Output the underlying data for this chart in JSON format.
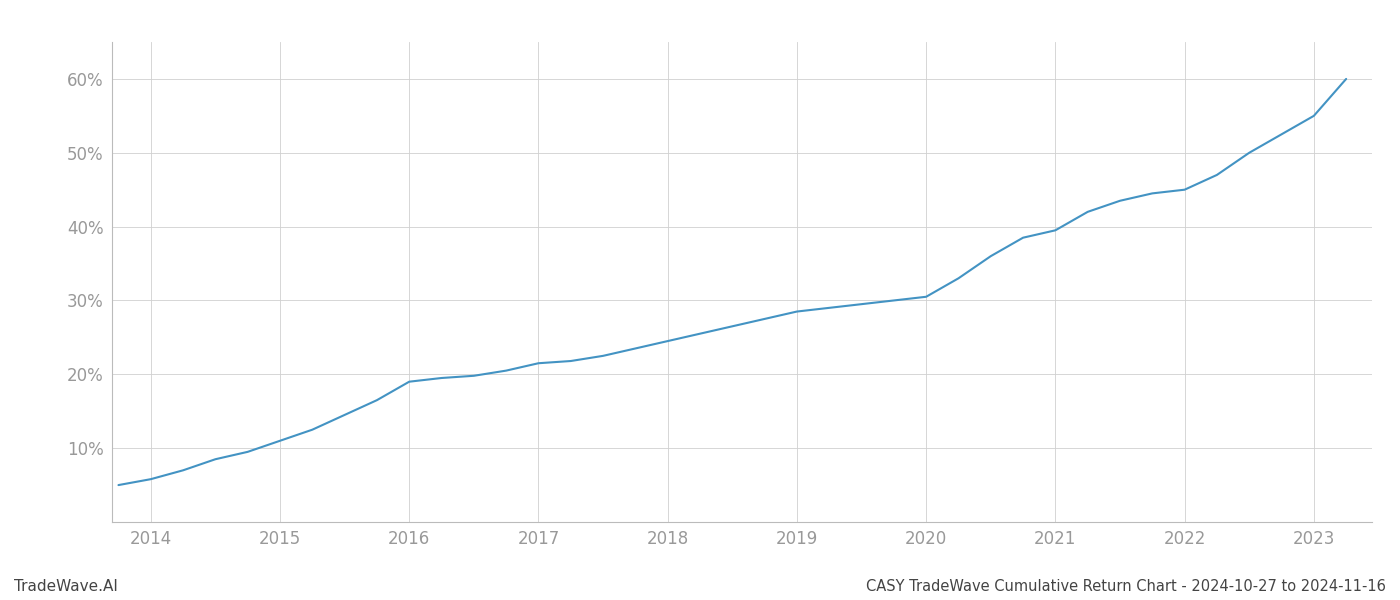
{
  "x_values": [
    2013.75,
    2014.0,
    2014.25,
    2014.5,
    2014.75,
    2015.0,
    2015.25,
    2015.5,
    2015.75,
    2016.0,
    2016.25,
    2016.5,
    2016.75,
    2017.0,
    2017.25,
    2017.5,
    2017.75,
    2018.0,
    2018.25,
    2018.5,
    2018.75,
    2019.0,
    2019.25,
    2019.5,
    2019.75,
    2020.0,
    2020.25,
    2020.5,
    2020.75,
    2021.0,
    2021.25,
    2021.5,
    2021.75,
    2022.0,
    2022.25,
    2022.5,
    2022.75,
    2023.0,
    2023.25
  ],
  "y_values": [
    5.0,
    5.8,
    7.0,
    8.5,
    9.5,
    11.0,
    12.5,
    14.5,
    16.5,
    19.0,
    19.5,
    19.8,
    20.5,
    21.5,
    21.8,
    22.5,
    23.5,
    24.5,
    25.5,
    26.5,
    27.5,
    28.5,
    29.0,
    29.5,
    30.0,
    30.5,
    33.0,
    36.0,
    38.5,
    39.5,
    42.0,
    43.5,
    44.5,
    45.0,
    47.0,
    50.0,
    52.5,
    55.0,
    60.0
  ],
  "line_color": "#4393c3",
  "line_width": 1.5,
  "background_color": "#ffffff",
  "grid_color": "#d0d0d0",
  "tick_label_color": "#999999",
  "axis_color": "#bbbbbb",
  "title": "CASY TradeWave Cumulative Return Chart - 2024-10-27 to 2024-11-16",
  "watermark": "TradeWave.AI",
  "ylim": [
    0,
    65
  ],
  "xlim": [
    2013.7,
    2023.45
  ],
  "yticks": [
    10,
    20,
    30,
    40,
    50,
    60
  ],
  "xticks": [
    2014,
    2015,
    2016,
    2017,
    2018,
    2019,
    2020,
    2021,
    2022,
    2023
  ],
  "title_fontsize": 10.5,
  "tick_fontsize": 12,
  "watermark_fontsize": 11
}
